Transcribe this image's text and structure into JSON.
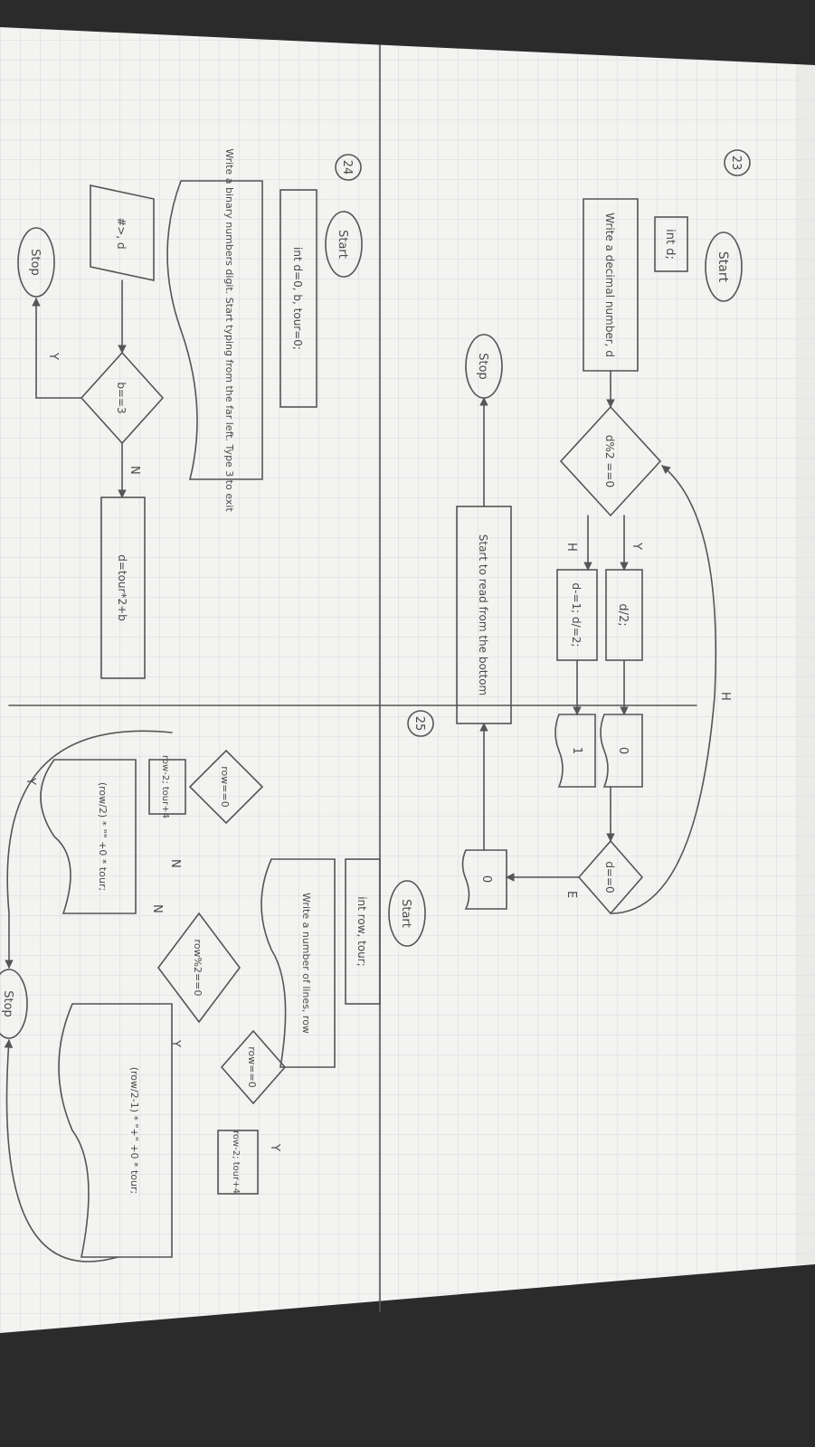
{
  "colors": {
    "background": "#2b2b2b",
    "paper": "#f3f3f1",
    "grid": "#c9cccf",
    "pencil": "#555555"
  },
  "flow23": {
    "number": "23",
    "start": "Start",
    "declare": "int d;",
    "input": "Write a decimal number, d",
    "cond_mod": "d%2 ==0",
    "yes": "Y",
    "no": "H",
    "half": "d/2;",
    "dec_half": "d-=1; d/=2;",
    "out_zero": "0",
    "out_one": "1",
    "cond_zero": "d==0",
    "e_label": "E",
    "loop_label": "H",
    "final_zero": "0",
    "read_note": "Start to read from the bottom",
    "stop": "Stop"
  },
  "flow24": {
    "number": "24",
    "start": "Start",
    "declare": "int d=0, b, tour=0;",
    "input": "Write a binary numbers digit. Start typing from the far left. Type 3 to exit",
    "read_b": "#>, d",
    "cond_b": "b==3",
    "no": "N",
    "calc": "d=tour*2+b",
    "yes": "Y",
    "stop": "Stop"
  },
  "flow25": {
    "number": "25",
    "start": "Start",
    "declare": "int row, tour;",
    "input": "Write a number of lines, row",
    "cond_row": "row==0",
    "yes_row": "Y",
    "row_update": "row-2; tour+4",
    "cond_even": "row%2==0",
    "yes_even": "Y",
    "no_even": "N",
    "print_odd": "(row/2-1) * \"+\" +0 * tour;",
    "cond_row2": "row==0",
    "no_row2": "N",
    "row_update2": "row-2; tour+4",
    "print_even": "(row/2) * \"\" +0 * tour;",
    "loop_y": "Y",
    "stop": "Stop"
  }
}
